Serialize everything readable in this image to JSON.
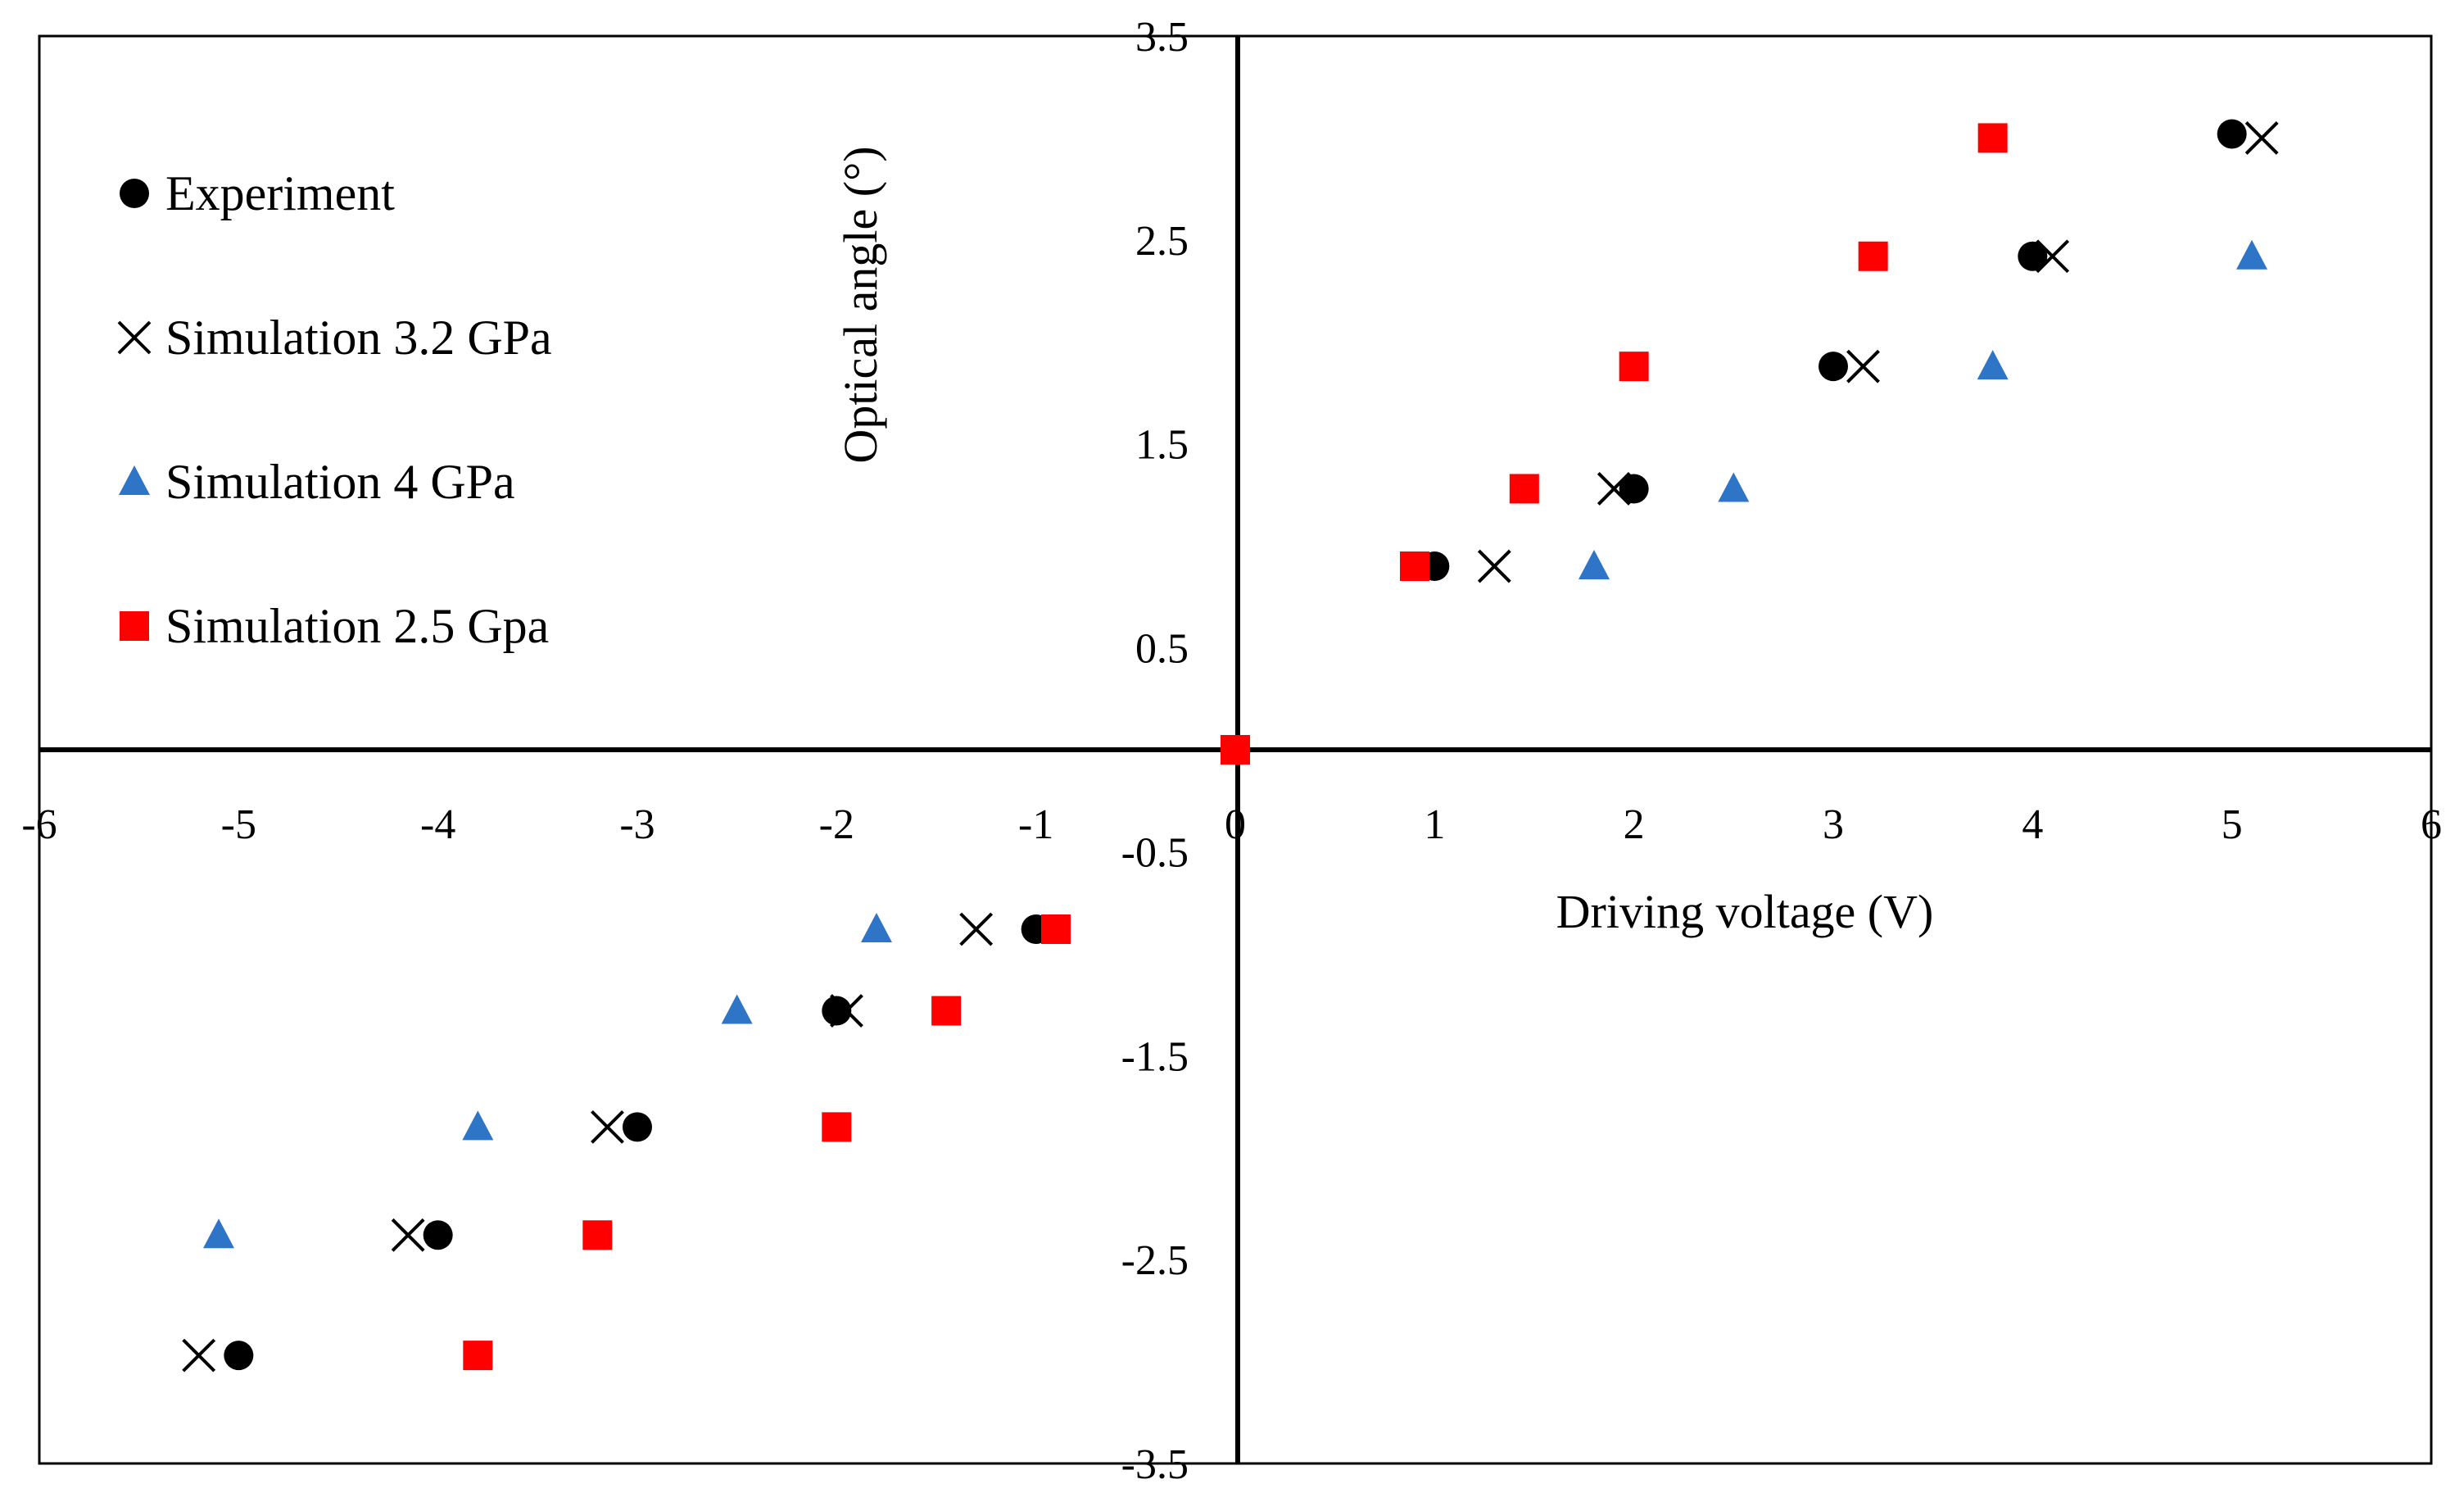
{
  "chart_data": {
    "type": "scatter",
    "title": "",
    "xlabel": "Driving voltage (V)",
    "ylabel": "Optical angle (°)",
    "xlim": [
      -6,
      6
    ],
    "ylim": [
      -3.5,
      3.5
    ],
    "x_ticks": [
      "-6",
      "-5",
      "-4",
      "-3",
      "-2",
      "-1",
      "0",
      "1",
      "2",
      "3",
      "4",
      "5",
      "6"
    ],
    "y_ticks": [
      "3.5",
      "2.5",
      "1.5",
      "0.5",
      "-0.5",
      "-1.5",
      "-2.5",
      "-3.5"
    ],
    "legend_position": "top-left",
    "series": [
      {
        "name": "Experiment",
        "marker": "circle",
        "color": "#000000",
        "points": [
          [
            0,
            0
          ],
          [
            1,
            0.9
          ],
          [
            2,
            1.28
          ],
          [
            3,
            1.88
          ],
          [
            4,
            2.42
          ],
          [
            5,
            3.02
          ],
          [
            -1,
            -0.88
          ],
          [
            -2,
            -1.28
          ],
          [
            -3,
            -1.85
          ],
          [
            -4,
            -2.38
          ],
          [
            -5,
            -2.97
          ]
        ]
      },
      {
        "name": "Simulation 3.2 GPa",
        "marker": "x",
        "color": "#000000",
        "points": [
          [
            1.3,
            0.9
          ],
          [
            1.9,
            1.28
          ],
          [
            3.15,
            1.88
          ],
          [
            4.1,
            2.42
          ],
          [
            5.15,
            3.0
          ],
          [
            -1.3,
            -0.88
          ],
          [
            -1.95,
            -1.28
          ],
          [
            -3.15,
            -1.85
          ],
          [
            -4.15,
            -2.38
          ],
          [
            -5.2,
            -2.97
          ]
        ]
      },
      {
        "name": "Simulation 4 GPa",
        "marker": "triangle",
        "color": "#2e75c8",
        "points": [
          [
            1.8,
            0.9
          ],
          [
            2.5,
            1.28
          ],
          [
            3.8,
            1.88
          ],
          [
            5.1,
            2.42
          ],
          [
            -1.8,
            -0.88
          ],
          [
            -2.5,
            -1.28
          ],
          [
            -3.8,
            -1.85
          ],
          [
            -5.1,
            -2.38
          ]
        ]
      },
      {
        "name": "Simulation 2.5 Gpa",
        "marker": "square",
        "color": "#ff0000",
        "points": [
          [
            0,
            0
          ],
          [
            0.9,
            0.9
          ],
          [
            1.45,
            1.28
          ],
          [
            2.0,
            1.88
          ],
          [
            3.2,
            2.42
          ],
          [
            3.8,
            3.0
          ],
          [
            -0.9,
            -0.88
          ],
          [
            -1.45,
            -1.28
          ],
          [
            -2.0,
            -1.85
          ],
          [
            -3.2,
            -2.38
          ],
          [
            -3.8,
            -2.97
          ]
        ]
      }
    ]
  }
}
